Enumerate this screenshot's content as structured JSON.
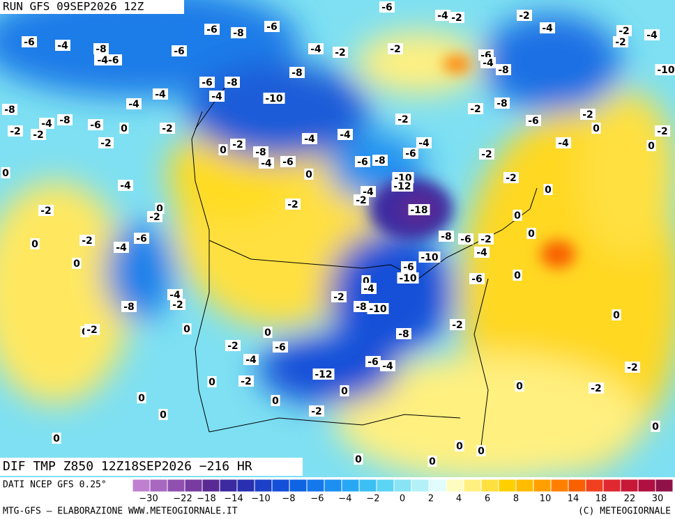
{
  "header": {
    "run": "RUN GFS 09SEP2026 12Z",
    "title": "DIF TMP Z850 12Z18SEP2026 −216 HR"
  },
  "footer": {
    "source": "DATI NCEP GFS 0.25°",
    "credit": "MTG-GFS — ELABORAZIONE WWW.METEOGIORNALE.IT",
    "copyright": "(C) METEOGIORNALE"
  },
  "legend": {
    "colors": [
      "#c080d0",
      "#a868c0",
      "#9050b0",
      "#783ca0",
      "#5a2a94",
      "#3c2aa0",
      "#2830b0",
      "#1c40c8",
      "#1450d8",
      "#1064e4",
      "#1478ec",
      "#1c90f0",
      "#28a8f4",
      "#3cc0f4",
      "#5cd4f4",
      "#88e4f4",
      "#b4f0f8",
      "#e0fcfc",
      "#fffcc0",
      "#fff080",
      "#ffe040",
      "#ffd000",
      "#ffbc00",
      "#ffa000",
      "#ff8000",
      "#f86000",
      "#f04020",
      "#e02830",
      "#c81838",
      "#b01040",
      "#901048"
    ],
    "ticks": [
      "−30",
      "−22",
      "−18",
      "−14",
      "−10",
      "−8",
      "−6",
      "−4",
      "−2",
      "0",
      "2",
      "4",
      "6",
      "8",
      "10",
      "14",
      "18",
      "22",
      "30"
    ]
  },
  "map": {
    "labels": [
      "-6",
      "-4",
      "-2",
      "-2",
      "-6",
      "-8",
      "-6",
      "-4",
      "-2",
      "-4",
      "-2",
      "-6",
      "-4",
      "-8",
      "-6",
      "-4",
      "-2",
      "-2",
      "-6",
      "-4",
      "-8",
      "-10",
      "-4-6",
      "-8",
      "-6",
      "-8",
      "-4",
      "-4",
      "-10",
      "-8",
      "-2",
      "-4",
      "-8",
      "-2",
      "-4",
      "-8",
      "-6",
      "0",
      "-2",
      "-2",
      "-6",
      "0",
      "-2",
      "-2",
      "-4",
      "-4",
      "-4",
      "-2",
      "0",
      "-2",
      "-8",
      "-6",
      "-2",
      "-4",
      "0",
      "-2",
      "-4",
      "-6",
      "-6",
      "-8",
      "0",
      "-10",
      "0",
      "-2",
      "-12",
      "-4",
      "-4",
      "-2",
      "-2",
      "0",
      "-18",
      "-2",
      "0",
      "-2",
      "0",
      "-8",
      "-6",
      "-2",
      "-6",
      "-2",
      "0",
      "-4",
      "0",
      "-4",
      "-10",
      "0",
      "-6",
      "-10",
      "-6",
      "0",
      "0",
      "-4",
      "-4",
      "-2",
      "-8",
      "-2",
      "-8",
      "-10",
      "0",
      "-2",
      "0",
      "-2",
      "0",
      "0",
      "-8",
      "-2",
      "-6",
      "-4",
      "-6",
      "-4",
      "-2",
      "-12",
      "-2",
      "0",
      "0",
      "-2",
      "0",
      "0",
      "0",
      "-2",
      "0",
      "0",
      "0",
      "0",
      "0",
      "0",
      "0"
    ]
  }
}
